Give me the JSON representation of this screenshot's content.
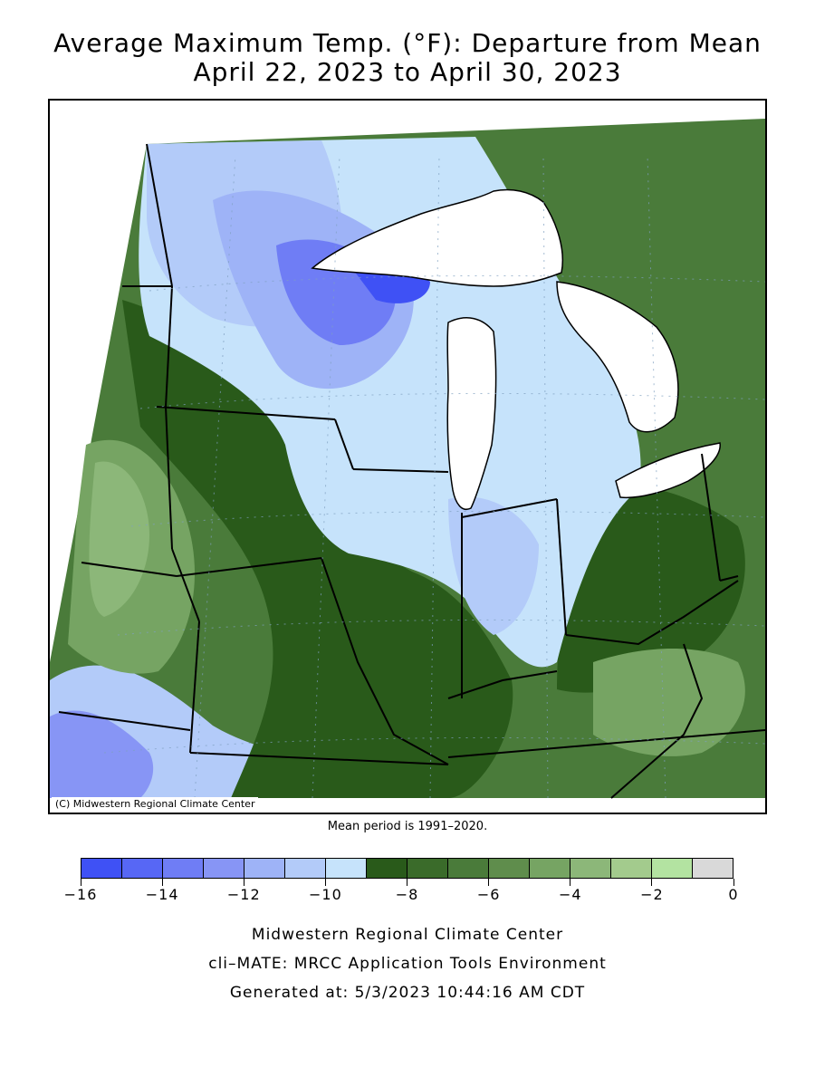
{
  "title": {
    "line1": "Average Maximum Temp. (°F): Departure from Mean",
    "line2": "April 22, 2023 to April 30, 2023"
  },
  "map": {
    "copyright": "(C) Midwestern Regional Climate Center",
    "colors": {
      "water": "#ffffff",
      "band_-16": "#3f51f5",
      "band_-15": "#5767f5",
      "band_-14": "#6f7df5",
      "band_-13": "#8795f5",
      "band_-12": "#9eb3f7",
      "band_-11": "#b3cbf9",
      "band_-10": "#c6e3fb",
      "band_-9": "#295a1a",
      "band_-8": "#3a6b2a",
      "band_-7": "#4a7b3a",
      "band_-6": "#5f8d4c",
      "band_-5": "#76a463",
      "band_-4": "#8cb779"
    }
  },
  "mean_period": "Mean period is 1991–2020.",
  "legend": {
    "swatches": [
      "#3f51f5",
      "#5767f5",
      "#6f7df5",
      "#8795f5",
      "#9eb3f7",
      "#b3cbf9",
      "#c6e3fb",
      "#295a1a",
      "#3a6b2a",
      "#4a7b3a",
      "#5f8d4c",
      "#76a463",
      "#8cb779",
      "#a3cb8d",
      "#b3e3a1",
      "#d9d9d9"
    ],
    "tick_labels": [
      "−16",
      "−14",
      "−12",
      "−10",
      "−8",
      "−6",
      "−4",
      "−2",
      "0"
    ]
  },
  "credits": {
    "line1": "Midwestern Regional Climate Center",
    "line2": "cli–MATE: MRCC Application Tools Environment",
    "line3": "Generated at: 5/3/2023 10:44:16 AM CDT"
  }
}
